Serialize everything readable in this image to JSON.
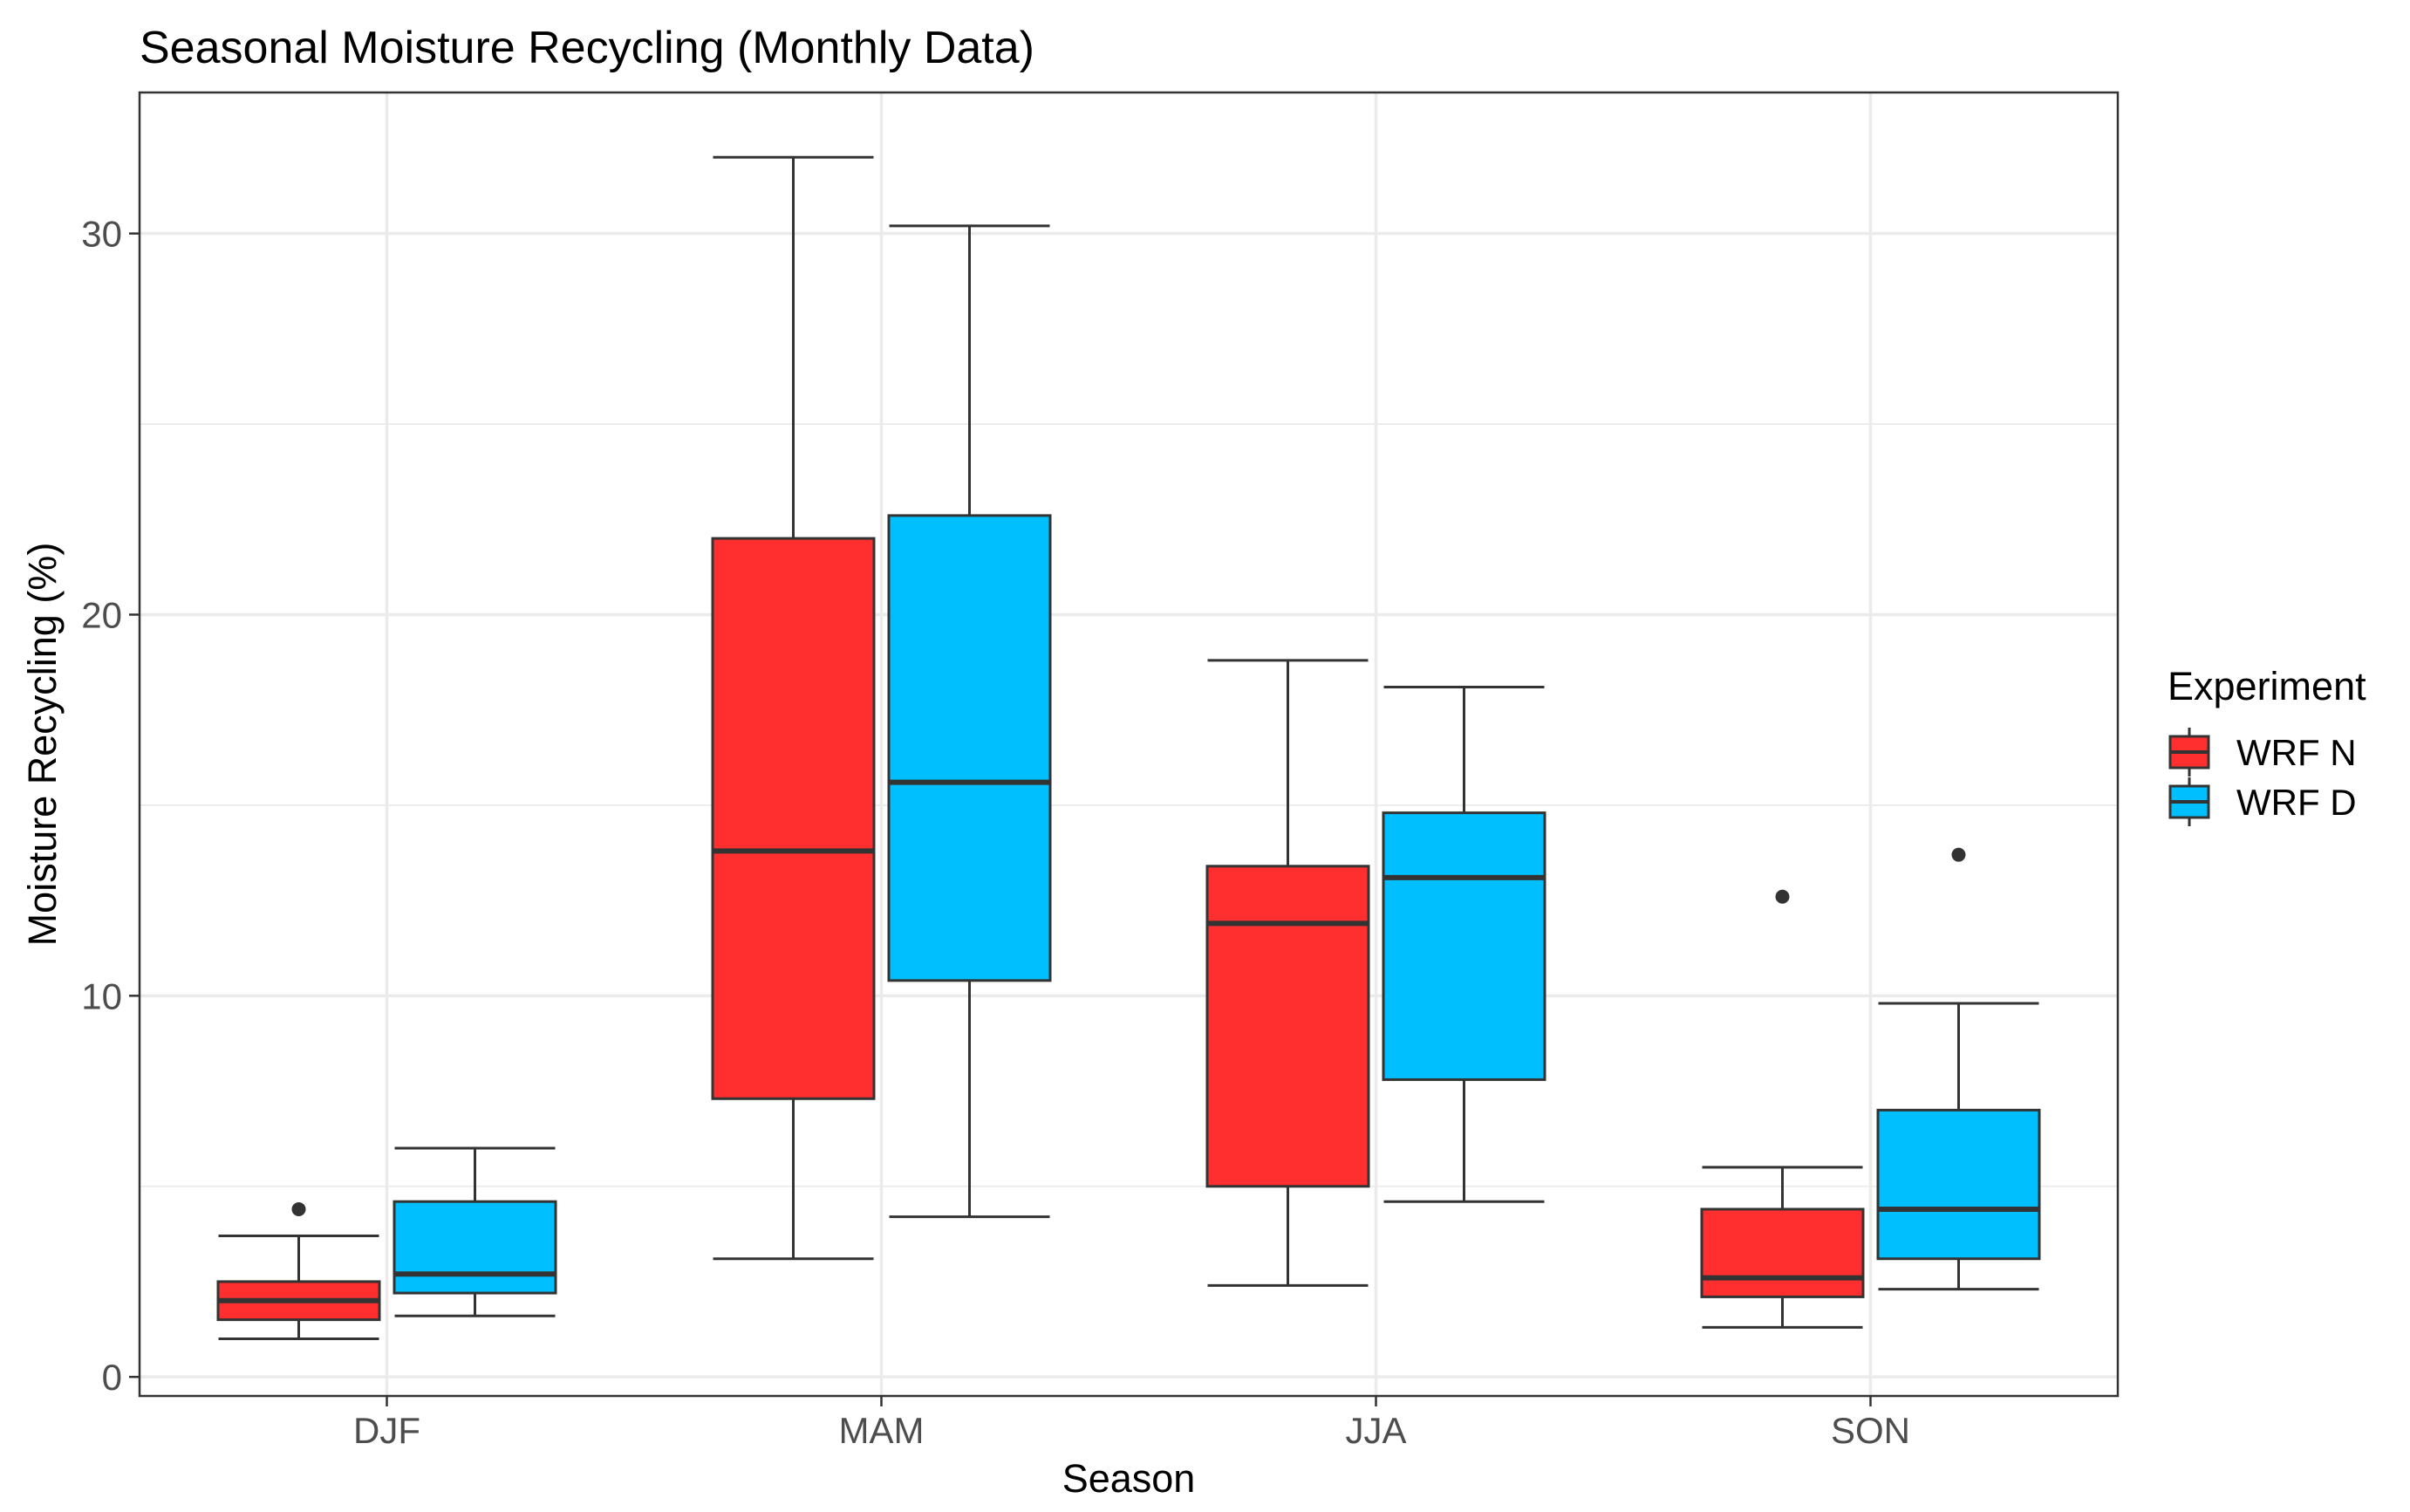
{
  "chart_data": {
    "type": "boxplot",
    "title": "Seasonal Moisture Recycling (Monthly Data)",
    "xlabel": "Season",
    "ylabel": "Moisture Recycling (%)",
    "categories": [
      "DJF",
      "MAM",
      "JJA",
      "SON"
    ],
    "ylim": [
      -0.5,
      33.7
    ],
    "yticks": [
      0,
      10,
      20,
      30
    ],
    "ytick_labels": [
      "0",
      "10",
      "20",
      "30"
    ],
    "grid": true,
    "legend": {
      "title": "Experiment",
      "position": "right",
      "entries": [
        "WRF N",
        "WRF D"
      ]
    },
    "series": [
      {
        "name": "WRF N",
        "color": "#ff2f2f",
        "boxes": [
          {
            "category": "DJF",
            "whisker_low": 1.0,
            "q1": 1.5,
            "median": 2.0,
            "q3": 2.5,
            "whisker_high": 3.7,
            "outliers": [
              4.4
            ]
          },
          {
            "category": "MAM",
            "whisker_low": 3.1,
            "q1": 7.3,
            "median": 13.8,
            "q3": 22.0,
            "whisker_high": 32.0,
            "outliers": []
          },
          {
            "category": "JJA",
            "whisker_low": 2.4,
            "q1": 5.0,
            "median": 11.9,
            "q3": 13.4,
            "whisker_high": 18.8,
            "outliers": []
          },
          {
            "category": "SON",
            "whisker_low": 1.3,
            "q1": 2.1,
            "median": 2.6,
            "q3": 4.4,
            "whisker_high": 5.5,
            "outliers": [
              12.6
            ]
          }
        ]
      },
      {
        "name": "WRF D",
        "color": "#00bfff",
        "boxes": [
          {
            "category": "DJF",
            "whisker_low": 1.6,
            "q1": 2.2,
            "median": 2.7,
            "q3": 4.6,
            "whisker_high": 6.0,
            "outliers": []
          },
          {
            "category": "MAM",
            "whisker_low": 4.2,
            "q1": 10.4,
            "median": 15.6,
            "q3": 22.6,
            "whisker_high": 30.2,
            "outliers": []
          },
          {
            "category": "JJA",
            "whisker_low": 4.6,
            "q1": 7.8,
            "median": 13.1,
            "q3": 14.8,
            "whisker_high": 18.1,
            "outliers": []
          },
          {
            "category": "SON",
            "whisker_low": 2.3,
            "q1": 3.1,
            "median": 4.4,
            "q3": 7.0,
            "whisker_high": 9.8,
            "outliers": [
              13.7
            ]
          }
        ]
      }
    ]
  }
}
